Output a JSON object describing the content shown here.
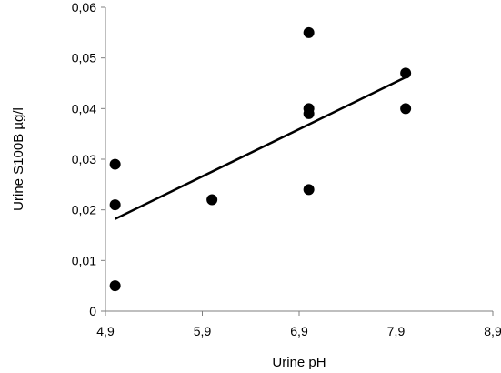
{
  "chart_data": {
    "type": "scatter",
    "xlabel": "Urine pH",
    "ylabel": "Urine S100B µg/l",
    "xlim": [
      4.9,
      8.9
    ],
    "ylim": [
      0,
      0.06
    ],
    "x_ticks": [
      4.9,
      5.9,
      6.9,
      7.9,
      8.9
    ],
    "x_tick_labels": [
      "4,9",
      "5,9",
      "6,9",
      "7,9",
      "8,9"
    ],
    "y_ticks": [
      0,
      0.01,
      0.02,
      0.03,
      0.04,
      0.05,
      0.06
    ],
    "y_tick_labels": [
      "0",
      "0,01",
      "0,02",
      "0,03",
      "0,04",
      "0,05",
      "0,06"
    ],
    "grid": false,
    "legend": "none",
    "points": [
      {
        "x": 5.0,
        "y": 0.029
      },
      {
        "x": 5.0,
        "y": 0.021
      },
      {
        "x": 5.0,
        "y": 0.005
      },
      {
        "x": 6.0,
        "y": 0.022
      },
      {
        "x": 7.0,
        "y": 0.055
      },
      {
        "x": 7.0,
        "y": 0.04
      },
      {
        "x": 7.0,
        "y": 0.039
      },
      {
        "x": 7.0,
        "y": 0.024
      },
      {
        "x": 8.0,
        "y": 0.047
      },
      {
        "x": 8.0,
        "y": 0.04
      }
    ],
    "trendline": {
      "type": "linear",
      "from": {
        "x": 5.0,
        "y": 0.0182
      },
      "to": {
        "x": 8.0,
        "y": 0.0462
      }
    },
    "marker_color": "#000000",
    "line_color": "#000000"
  }
}
